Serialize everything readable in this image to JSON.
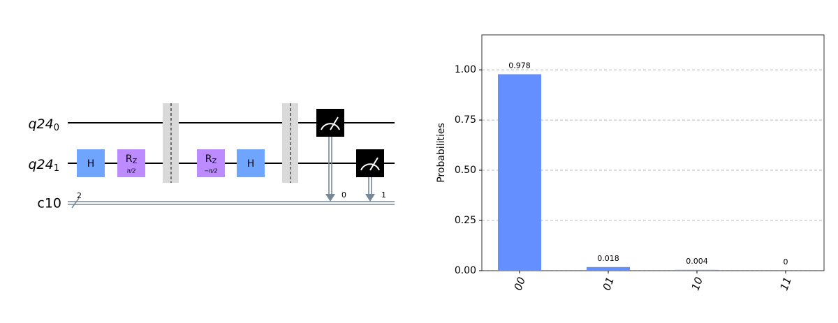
{
  "circuit": {
    "qubits": [
      {
        "name": "q24",
        "index": "0"
      },
      {
        "name": "q24",
        "index": "1"
      }
    ],
    "clbits": {
      "name": "c10",
      "size": "2"
    },
    "gates": [
      {
        "label": "H"
      },
      {
        "label": "R",
        "sub": "Z",
        "param": "π/2"
      },
      {
        "label": "R",
        "sub": "Z",
        "param": "−π/2"
      },
      {
        "label": "H"
      }
    ],
    "measure_bits": [
      "0",
      "1"
    ]
  },
  "chart_data": {
    "type": "bar",
    "ylabel": "Probabilities",
    "categories": [
      "00",
      "01",
      "10",
      "11"
    ],
    "values": [
      0.978,
      0.018,
      0.004,
      0
    ],
    "color": "#648fff",
    "ylim": [
      0,
      1.174
    ],
    "yticks": [
      {
        "value": 0,
        "label": "0.00"
      },
      {
        "value": 0.25,
        "label": "0.25"
      },
      {
        "value": 0.5,
        "label": "0.50"
      },
      {
        "value": 0.75,
        "label": "0.75"
      },
      {
        "value": 1,
        "label": "1.00"
      }
    ],
    "grid": true
  }
}
